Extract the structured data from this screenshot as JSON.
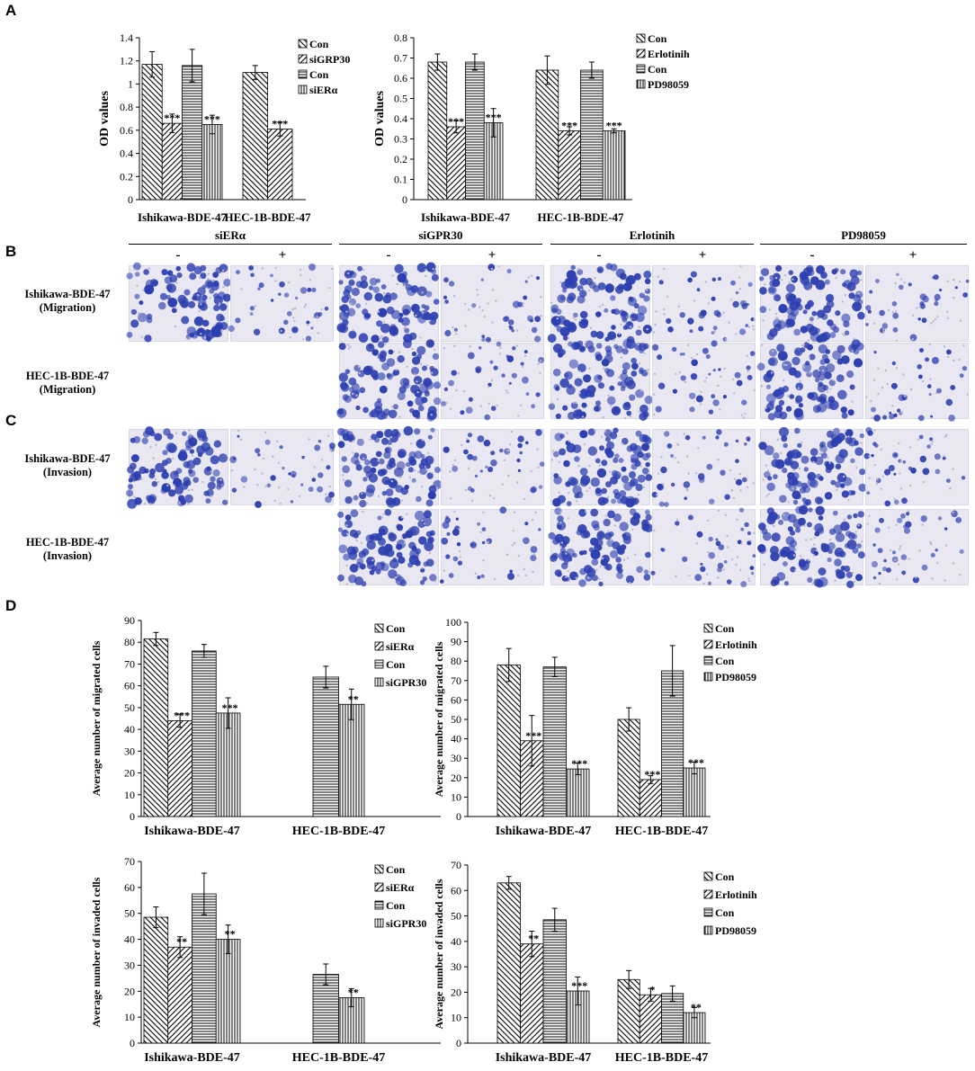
{
  "panels": {
    "A": "A",
    "B": "B",
    "C": "C",
    "D": "D"
  },
  "section_bc": {
    "groups": [
      {
        "title": "siERα",
        "minus": "-",
        "plus": "+"
      },
      {
        "title": "siGPR30",
        "minus": "-",
        "plus": "+"
      },
      {
        "title": "Erlotinih",
        "minus": "-",
        "plus": "+"
      },
      {
        "title": "PD98059",
        "minus": "-",
        "plus": "+"
      }
    ],
    "rows": [
      {
        "line1": "Ishikawa-BDE-47",
        "line2": "(Migration)"
      },
      {
        "line1": "HEC-1B-BDE-47",
        "line2": "(Migration)"
      },
      {
        "line1": "Ishikawa-BDE-47",
        "line2": "(Invasion)"
      },
      {
        "line1": "HEC-1B-BDE-47",
        "line2": "(Invasion)"
      }
    ],
    "stain_color": "#2d3fb0"
  },
  "chart_data": [
    {
      "id": "A-left",
      "type": "bar",
      "ylabel": "OD values",
      "ylim": [
        0,
        1.4
      ],
      "yticks": [
        0,
        0.2,
        0.4,
        0.6,
        0.8,
        1,
        1.2,
        1.4
      ],
      "categories": [
        "Ishikawa-BDE-47",
        "HEC-1B-BDE-47"
      ],
      "series": [
        {
          "name": "Con",
          "pattern": "diag-back",
          "values": [
            1.17,
            1.1
          ],
          "errors": [
            0.11,
            0.06
          ],
          "sig": [
            "",
            ""
          ]
        },
        {
          "name": "siGRP30",
          "pattern": "diag-fwd",
          "values": [
            0.66,
            0.61
          ],
          "errors": [
            0.08,
            0.06
          ],
          "sig": [
            "***",
            "***"
          ]
        },
        {
          "name": "Con",
          "pattern": "horiz",
          "values": [
            1.16,
            null
          ],
          "errors": [
            0.14,
            null
          ],
          "sig": [
            "",
            ""
          ]
        },
        {
          "name": "siERα",
          "pattern": "vert",
          "values": [
            0.65,
            null
          ],
          "errors": [
            0.08,
            null
          ],
          "sig": [
            "***",
            ""
          ]
        }
      ]
    },
    {
      "id": "A-right",
      "type": "bar",
      "ylabel": "OD values",
      "ylim": [
        0,
        0.8
      ],
      "yticks": [
        0,
        0.1,
        0.2,
        0.3,
        0.4,
        0.5,
        0.6,
        0.7,
        0.8
      ],
      "categories": [
        "Ishikawa-BDE-47",
        "HEC-1B-BDE-47"
      ],
      "series": [
        {
          "name": "Con",
          "pattern": "diag-back",
          "values": [
            0.68,
            0.64
          ],
          "errors": [
            0.04,
            0.07
          ],
          "sig": [
            "",
            ""
          ]
        },
        {
          "name": "Erlotinih",
          "pattern": "diag-fwd",
          "values": [
            0.36,
            0.34
          ],
          "errors": [
            0.03,
            0.02
          ],
          "sig": [
            "***",
            "***"
          ]
        },
        {
          "name": "Con",
          "pattern": "horiz",
          "values": [
            0.68,
            0.64
          ],
          "errors": [
            0.04,
            0.04
          ],
          "sig": [
            "",
            ""
          ]
        },
        {
          "name": "PD98059",
          "pattern": "vert",
          "values": [
            0.38,
            0.34
          ],
          "errors": [
            0.07,
            0.01
          ],
          "sig": [
            "***",
            "***"
          ]
        }
      ]
    },
    {
      "id": "D-top-left",
      "type": "bar",
      "ylabel": "Average number of migrated cells",
      "ylim": [
        0,
        90
      ],
      "yticks": [
        0,
        10,
        20,
        30,
        40,
        50,
        60,
        70,
        80,
        90
      ],
      "categories": [
        "Ishikawa-BDE-47",
        "HEC-1B-BDE-47"
      ],
      "series": [
        {
          "name": "Con",
          "pattern": "diag-back",
          "values": [
            81.5,
            null
          ],
          "errors": [
            3,
            null
          ],
          "sig": [
            "",
            ""
          ]
        },
        {
          "name": "siERα",
          "pattern": "diag-fwd",
          "values": [
            44,
            null
          ],
          "errors": [
            3,
            null
          ],
          "sig": [
            "***",
            ""
          ]
        },
        {
          "name": "Con",
          "pattern": "horiz",
          "values": [
            76,
            64
          ],
          "errors": [
            3,
            5
          ],
          "sig": [
            "",
            ""
          ]
        },
        {
          "name": "siGPR30",
          "pattern": "vert",
          "values": [
            47.5,
            51.5
          ],
          "errors": [
            7,
            7
          ],
          "sig": [
            "***",
            "**"
          ]
        }
      ]
    },
    {
      "id": "D-top-right",
      "type": "bar",
      "ylabel": "Average number of migrated cells",
      "ylim": [
        0,
        100
      ],
      "yticks": [
        0,
        10,
        20,
        30,
        40,
        50,
        60,
        70,
        80,
        90,
        100
      ],
      "categories": [
        "Ishikawa-BDE-47",
        "HEC-1B-BDE-47"
      ],
      "series": [
        {
          "name": "Con",
          "pattern": "diag-back",
          "values": [
            78,
            50
          ],
          "errors": [
            8.5,
            6
          ],
          "sig": [
            "",
            ""
          ]
        },
        {
          "name": "Erlotinih",
          "pattern": "diag-fwd",
          "values": [
            39,
            19
          ],
          "errors": [
            13,
            2
          ],
          "sig": [
            "***",
            "***"
          ]
        },
        {
          "name": "Con",
          "pattern": "horiz",
          "values": [
            77,
            75
          ],
          "errors": [
            5,
            13
          ],
          "sig": [
            "",
            ""
          ]
        },
        {
          "name": "PD98059",
          "pattern": "vert",
          "values": [
            24.5,
            25
          ],
          "errors": [
            3,
            3
          ],
          "sig": [
            "***",
            "***"
          ]
        }
      ]
    },
    {
      "id": "D-bottom-left",
      "type": "bar",
      "ylabel": "Average number of  invaded cells",
      "ylim": [
        0,
        70
      ],
      "yticks": [
        0,
        10,
        20,
        30,
        40,
        50,
        60,
        70
      ],
      "categories": [
        "Ishikawa-BDE-47",
        "HEC-1B-BDE-47"
      ],
      "series": [
        {
          "name": "Con",
          "pattern": "diag-back",
          "values": [
            48.5,
            null
          ],
          "errors": [
            4,
            null
          ],
          "sig": [
            "",
            ""
          ]
        },
        {
          "name": "siERα",
          "pattern": "diag-fwd",
          "values": [
            37,
            null
          ],
          "errors": [
            4,
            null
          ],
          "sig": [
            "**",
            ""
          ]
        },
        {
          "name": "Con",
          "pattern": "horiz",
          "values": [
            57.5,
            26.5
          ],
          "errors": [
            8,
            4
          ],
          "sig": [
            "",
            ""
          ]
        },
        {
          "name": "siGPR30",
          "pattern": "vert",
          "values": [
            40,
            17.5
          ],
          "errors": [
            5.5,
            3.5
          ],
          "sig": [
            "**",
            "**"
          ]
        }
      ]
    },
    {
      "id": "D-bottom-right",
      "type": "bar",
      "ylabel": "Average number of  invaded cells",
      "ylim": [
        0,
        70
      ],
      "yticks": [
        0,
        10,
        20,
        30,
        40,
        50,
        60,
        70
      ],
      "categories": [
        "Ishikawa-BDE-47",
        "HEC-1B-BDE-47"
      ],
      "series": [
        {
          "name": "Con",
          "pattern": "diag-back",
          "values": [
            63,
            25
          ],
          "errors": [
            2.5,
            3.5
          ],
          "sig": [
            "",
            ""
          ]
        },
        {
          "name": "Erlotinih",
          "pattern": "diag-fwd",
          "values": [
            39,
            19
          ],
          "errors": [
            5,
            2.5
          ],
          "sig": [
            "**",
            "*"
          ]
        },
        {
          "name": "Con",
          "pattern": "horiz",
          "values": [
            48.5,
            19.5
          ],
          "errors": [
            4.5,
            3
          ],
          "sig": [
            "",
            ""
          ]
        },
        {
          "name": "PD98059",
          "pattern": "vert",
          "values": [
            20.5,
            12
          ],
          "errors": [
            5.5,
            2
          ],
          "sig": [
            "***",
            "**"
          ]
        }
      ]
    }
  ]
}
